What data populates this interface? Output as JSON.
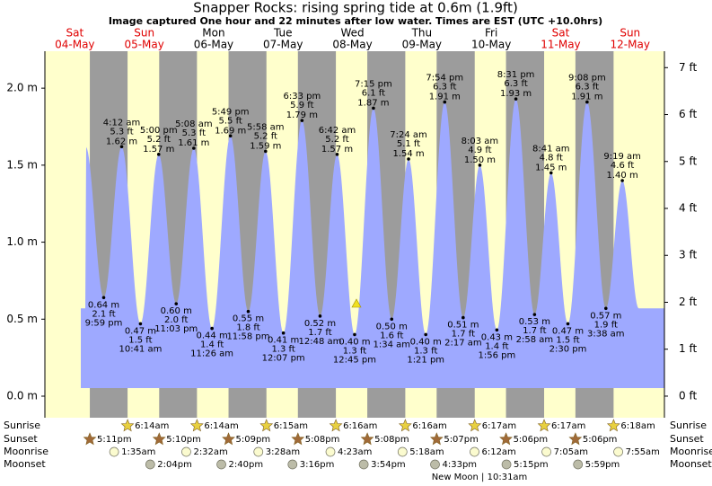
{
  "chart_data": {
    "type": "tide",
    "title": "Snapper Rocks: rising  spring tide at 0.6m (1.9ft)",
    "subtitle": "Image captured One hour and 22 minutes after low water. Times are EST (UTC +10.0hrs)",
    "ylim": [
      -0.14,
      2.24
    ],
    "yticks": [
      {
        "value": 0,
        "label": "0.0 m"
      },
      {
        "value": 0.5,
        "label": "0.5 m"
      },
      {
        "value": 1,
        "label": "1.0 m"
      },
      {
        "value": 1.5,
        "label": "1.5 m"
      },
      {
        "value": 2,
        "label": "2.0 m"
      }
    ],
    "y2lim": [
      -0.46,
      7.35
    ],
    "y2ticks": [
      {
        "value": 0,
        "label": "0 ft"
      },
      {
        "value": 1,
        "label": "1 ft"
      },
      {
        "value": 2,
        "label": "2 ft"
      },
      {
        "value": 3,
        "label": "3 ft"
      },
      {
        "value": 4,
        "label": "4 ft"
      },
      {
        "value": 5,
        "label": "5 ft"
      },
      {
        "value": 6,
        "label": "6 ft"
      },
      {
        "value": 7,
        "label": "7 ft"
      }
    ],
    "colors": {
      "day": "#ffffcc",
      "night": "#9c9c9c",
      "water": "#9ea9ff",
      "weekend": "#e00000",
      "sunrise": "#e8d040",
      "sunset": "#a06a38",
      "moonrise": "#fbfbcf",
      "moonset": "#bcbca8"
    },
    "rows": {
      "sunrise": "Sunrise",
      "sunset": "Sunset",
      "moonrise": "Moonrise",
      "moonset": "Moonset"
    },
    "note": "New Moon | 10:31am",
    "days": [
      {
        "name": "Sat",
        "date": "04-May",
        "weekend": true,
        "sunset": "5:11pm",
        "tides": [
          {
            "time": "9:59 pm",
            "m": 0.64,
            "m_label": "0.64 m",
            "ft": 2.1,
            "ft_label": "2.1 ft"
          }
        ]
      },
      {
        "name": "Sun",
        "date": "05-May",
        "weekend": true,
        "sunrise": "6:14am",
        "sunset": "5:10pm",
        "moonrise": "1:35am",
        "moonset": "2:04pm",
        "tides": [
          {
            "time": "4:12 am",
            "m": 1.62,
            "m_label": "1.62 m",
            "ft": 5.3,
            "ft_label": "5.3 ft"
          },
          {
            "time": "10:41 am",
            "m": 0.47,
            "m_label": "0.47 m",
            "ft": 1.5,
            "ft_label": "1.5 ft"
          },
          {
            "time": "5:00 pm",
            "m": 1.57,
            "m_label": "1.57 m",
            "ft": 5.2,
            "ft_label": "5.2 ft"
          },
          {
            "time": "11:03 pm",
            "m": 0.6,
            "m_label": "0.60 m",
            "ft": 2.0,
            "ft_label": "2.0 ft"
          }
        ]
      },
      {
        "name": "Mon",
        "date": "06-May",
        "weekend": false,
        "sunrise": "6:14am",
        "sunset": "5:09pm",
        "moonrise": "2:32am",
        "moonset": "2:40pm",
        "tides": [
          {
            "time": "5:08 am",
            "m": 1.61,
            "m_label": "1.61 m",
            "ft": 5.3,
            "ft_label": "5.3 ft"
          },
          {
            "time": "11:26 am",
            "m": 0.44,
            "m_label": "0.44 m",
            "ft": 1.4,
            "ft_label": "1.4 ft"
          },
          {
            "time": "5:49 pm",
            "m": 1.69,
            "m_label": "1.69 m",
            "ft": 5.5,
            "ft_label": "5.5 ft"
          },
          {
            "time": "11:58 pm",
            "m": 0.55,
            "m_label": "0.55 m",
            "ft": 1.8,
            "ft_label": "1.8 ft"
          }
        ]
      },
      {
        "name": "Tue",
        "date": "07-May",
        "weekend": false,
        "sunrise": "6:15am",
        "sunset": "5:08pm",
        "moonrise": "3:28am",
        "moonset": "3:16pm",
        "tides": [
          {
            "time": "5:58 am",
            "m": 1.59,
            "m_label": "1.59 m",
            "ft": 5.2,
            "ft_label": "5.2 ft"
          },
          {
            "time": "12:07 pm",
            "m": 0.41,
            "m_label": "0.41 m",
            "ft": 1.3,
            "ft_label": "1.3 ft"
          },
          {
            "time": "6:33 pm",
            "m": 1.79,
            "m_label": "1.79 m",
            "ft": 5.9,
            "ft_label": "5.9 ft"
          }
        ]
      },
      {
        "name": "Wed",
        "date": "08-May",
        "weekend": false,
        "sunrise": "6:16am",
        "sunset": "5:08pm",
        "moonrise": "4:23am",
        "moonset": "3:54pm",
        "tides": [
          {
            "time": "12:48 am",
            "m": 0.52,
            "m_label": "0.52 m",
            "ft": 1.7,
            "ft_label": "1.7 ft"
          },
          {
            "time": "6:42 am",
            "m": 1.57,
            "m_label": "1.57 m",
            "ft": 5.2,
            "ft_label": "5.2 ft"
          },
          {
            "time": "12:45 pm",
            "m": 0.4,
            "m_label": "0.40 m",
            "ft": 1.3,
            "ft_label": "1.3 ft"
          },
          {
            "time": "7:15 pm",
            "m": 1.87,
            "m_label": "1.87 m",
            "ft": 6.1,
            "ft_label": "6.1 ft"
          }
        ]
      },
      {
        "name": "Thu",
        "date": "09-May",
        "weekend": false,
        "sunrise": "6:16am",
        "sunset": "5:07pm",
        "moonrise": "5:18am",
        "moonset": "4:33pm",
        "tides": [
          {
            "time": "1:34 am",
            "m": 0.5,
            "m_label": "0.50 m",
            "ft": 1.6,
            "ft_label": "1.6 ft"
          },
          {
            "time": "7:24 am",
            "m": 1.54,
            "m_label": "1.54 m",
            "ft": 5.1,
            "ft_label": "5.1 ft"
          },
          {
            "time": "1:21 pm",
            "m": 0.4,
            "m_label": "0.40 m",
            "ft": 1.3,
            "ft_label": "1.3 ft"
          },
          {
            "time": "7:54 pm",
            "m": 1.91,
            "m_label": "1.91 m",
            "ft": 6.3,
            "ft_label": "6.3 ft"
          }
        ]
      },
      {
        "name": "Fri",
        "date": "10-May",
        "weekend": false,
        "sunrise": "6:17am",
        "sunset": "5:06pm",
        "moonrise": "6:12am",
        "moonset": "5:15pm",
        "tides": [
          {
            "time": "2:17 am",
            "m": 0.51,
            "m_label": "0.51 m",
            "ft": 1.7,
            "ft_label": "1.7 ft"
          },
          {
            "time": "8:03 am",
            "m": 1.5,
            "m_label": "1.50 m",
            "ft": 4.9,
            "ft_label": "4.9 ft"
          },
          {
            "time": "1:56 pm",
            "m": 0.43,
            "m_label": "0.43 m",
            "ft": 1.4,
            "ft_label": "1.4 ft"
          },
          {
            "time": "8:31 pm",
            "m": 1.93,
            "m_label": "1.93 m",
            "ft": 6.3,
            "ft_label": "6.3 ft"
          }
        ]
      },
      {
        "name": "Sat",
        "date": "11-May",
        "weekend": true,
        "sunrise": "6:17am",
        "sunset": "5:06pm",
        "moonrise": "7:05am",
        "moonset": "5:59pm",
        "tides": [
          {
            "time": "2:58 am",
            "m": 0.53,
            "m_label": "0.53 m",
            "ft": 1.7,
            "ft_label": "1.7 ft"
          },
          {
            "time": "8:41 am",
            "m": 1.45,
            "m_label": "1.45 m",
            "ft": 4.8,
            "ft_label": "4.8 ft"
          },
          {
            "time": "2:30 pm",
            "m": 0.47,
            "m_label": "0.47 m",
            "ft": 1.5,
            "ft_label": "1.5 ft"
          },
          {
            "time": "9:08 pm",
            "m": 1.91,
            "m_label": "1.91 m",
            "ft": 6.3,
            "ft_label": "6.3 ft"
          }
        ]
      },
      {
        "name": "Sun",
        "date": "12-May",
        "weekend": true,
        "sunrise": "6:18am",
        "moonrise": "7:55am",
        "tides": [
          {
            "time": "3:38 am",
            "m": 0.57,
            "m_label": "0.57 m",
            "ft": 1.9,
            "ft_label": "1.9 ft"
          },
          {
            "time": "9:19 am",
            "m": 1.4,
            "m_label": "1.40 m",
            "ft": 4.6,
            "ft_label": "4.6 ft"
          }
        ]
      }
    ]
  }
}
